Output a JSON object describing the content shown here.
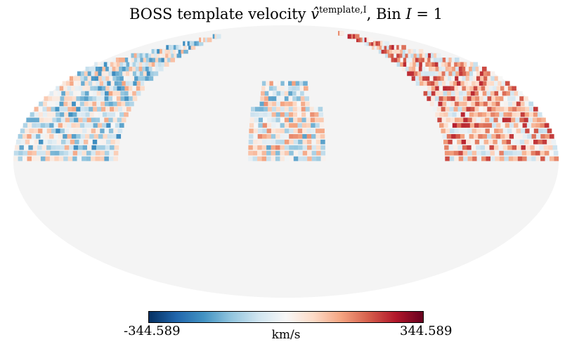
{
  "chart_data": {
    "type": "heatmap",
    "projection": "mollweide",
    "title": {
      "prefix": "BOSS template velocity ",
      "symbol": "v̂",
      "superscript": "template,I",
      "suffix_text": ", Bin ",
      "bin_expr": "I",
      "bin_eq": " = 1"
    },
    "colorbar": {
      "min": "-344.589",
      "max": "344.589",
      "unit": "km/s",
      "colormap": "RdBu_r",
      "stops": [
        "#053061",
        "#2166ac",
        "#4393c3",
        "#92c5de",
        "#d1e5f0",
        "#f7f7f7",
        "#fddbc7",
        "#f4a582",
        "#d6604d",
        "#b2182b",
        "#67001f"
      ]
    },
    "masked_color": "#f4f4f4",
    "regions": [
      {
        "name": "left-patch",
        "lon_range": [
          -180,
          -110
        ],
        "lat_range": [
          0,
          80
        ],
        "mean_value": -40
      },
      {
        "name": "center-patch",
        "lon_range": [
          -25,
          25
        ],
        "lat_range": [
          0,
          45
        ],
        "mean_value": -10
      },
      {
        "name": "right-patch",
        "lon_range": [
          105,
          180
        ],
        "lat_range": [
          0,
          80
        ],
        "mean_value": 90
      }
    ]
  }
}
